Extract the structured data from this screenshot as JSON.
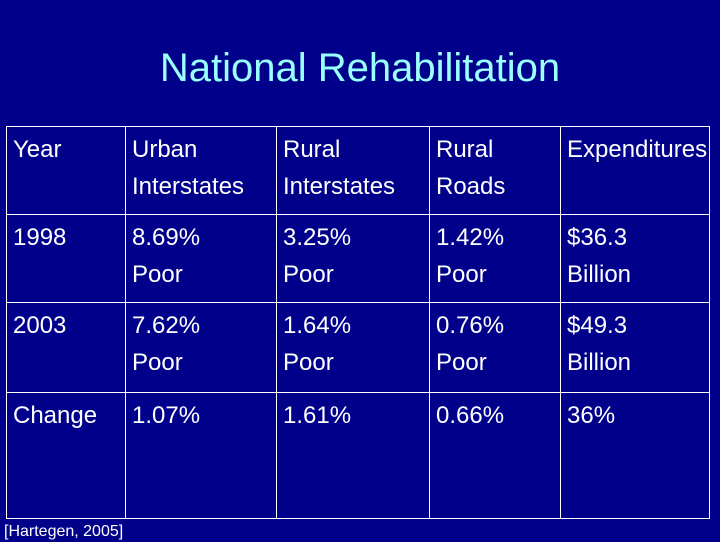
{
  "slide": {
    "title": "National Rehabilitation",
    "citation": "[Hartegen, 2005]"
  },
  "table": {
    "headers": [
      [
        "Year"
      ],
      [
        "Urban",
        "Interstates"
      ],
      [
        "Rural",
        "Interstates"
      ],
      [
        "Rural",
        "Roads"
      ],
      [
        "Expenditures"
      ]
    ],
    "rows": [
      [
        [
          "1998"
        ],
        [
          "8.69%",
          "Poor"
        ],
        [
          "3.25%",
          "Poor"
        ],
        [
          "1.42%",
          "Poor"
        ],
        [
          "$36.3",
          "Billion"
        ]
      ],
      [
        [
          "2003"
        ],
        [
          "7.62%",
          "Poor"
        ],
        [
          "1.64%",
          "Poor"
        ],
        [
          "0.76%",
          "Poor"
        ],
        [
          "$49.3",
          "Billion"
        ]
      ],
      [
        [
          "Change"
        ],
        [
          "1.07%"
        ],
        [
          "1.61%"
        ],
        [
          "0.66%"
        ],
        [
          "36%"
        ]
      ]
    ]
  },
  "colors": {
    "background": "#00008b",
    "title": "#99ffff",
    "text": "#ffffff"
  }
}
